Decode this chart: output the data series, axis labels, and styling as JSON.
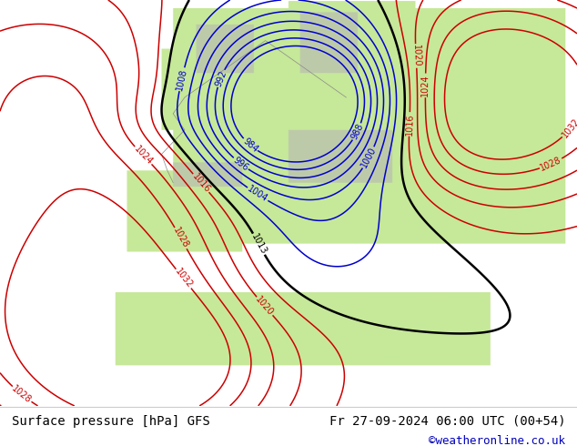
{
  "title_left": "Surface pressure [hPa] GFS",
  "title_right": "Fr 27-09-2024 06:00 UTC (00+54)",
  "credit": "©weatheronline.co.uk",
  "land_color": "#c8e8b8",
  "sea_color": "#ddeeff",
  "grey_color": "#b8b8b8",
  "fig_bg": "#ffffff",
  "bottom_bg": "#ffffff",
  "contour_low_color": "#0000cc",
  "contour_high_color": "#cc0000",
  "contour_black_color": "#000000",
  "label_fontsize": 7,
  "title_fontsize": 10,
  "credit_fontsize": 9
}
